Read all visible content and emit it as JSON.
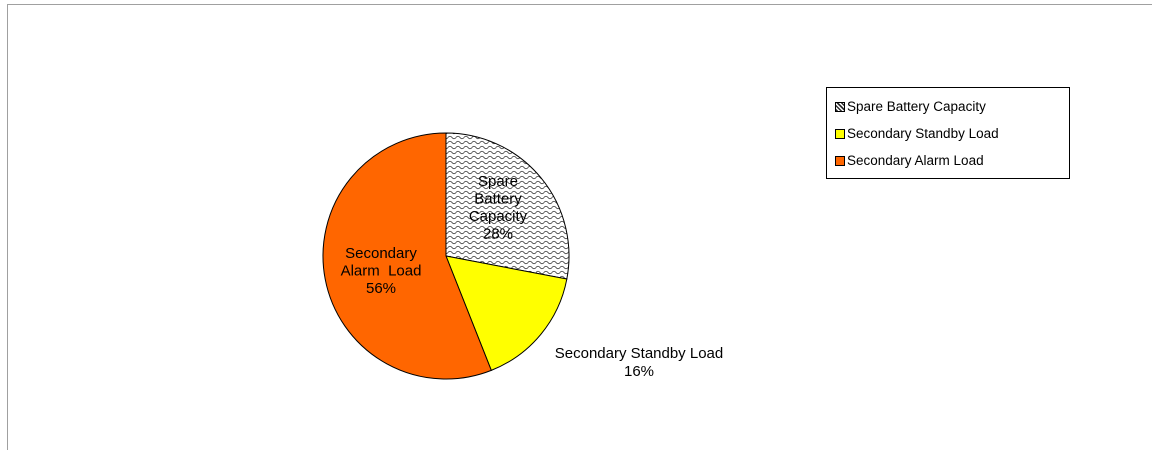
{
  "chart_data": {
    "type": "pie",
    "title": "",
    "slices": [
      {
        "name": "Spare Battery Capacity",
        "value": 28,
        "label_lines": [
          "Spare",
          "Battery",
          "Capacity",
          "28%"
        ],
        "color": "#f2f2f2",
        "pattern": "wave"
      },
      {
        "name": "Secondary Standby Load",
        "value": 16,
        "label_lines": [
          "Secondary Standby Load",
          "16%"
        ],
        "color": "#ffff00",
        "pattern": "solid"
      },
      {
        "name": "Secondary Alarm  Load",
        "value": 56,
        "label_lines": [
          "Secondary",
          "Alarm  Load",
          "56%"
        ],
        "color": "#ff6600",
        "pattern": "solid"
      }
    ],
    "legend": {
      "position": "right",
      "entries": [
        "Spare Battery Capacity",
        "Secondary Standby Load",
        "Secondary Alarm  Load"
      ]
    },
    "start_angle": "12 o'clock",
    "direction": "clockwise"
  }
}
